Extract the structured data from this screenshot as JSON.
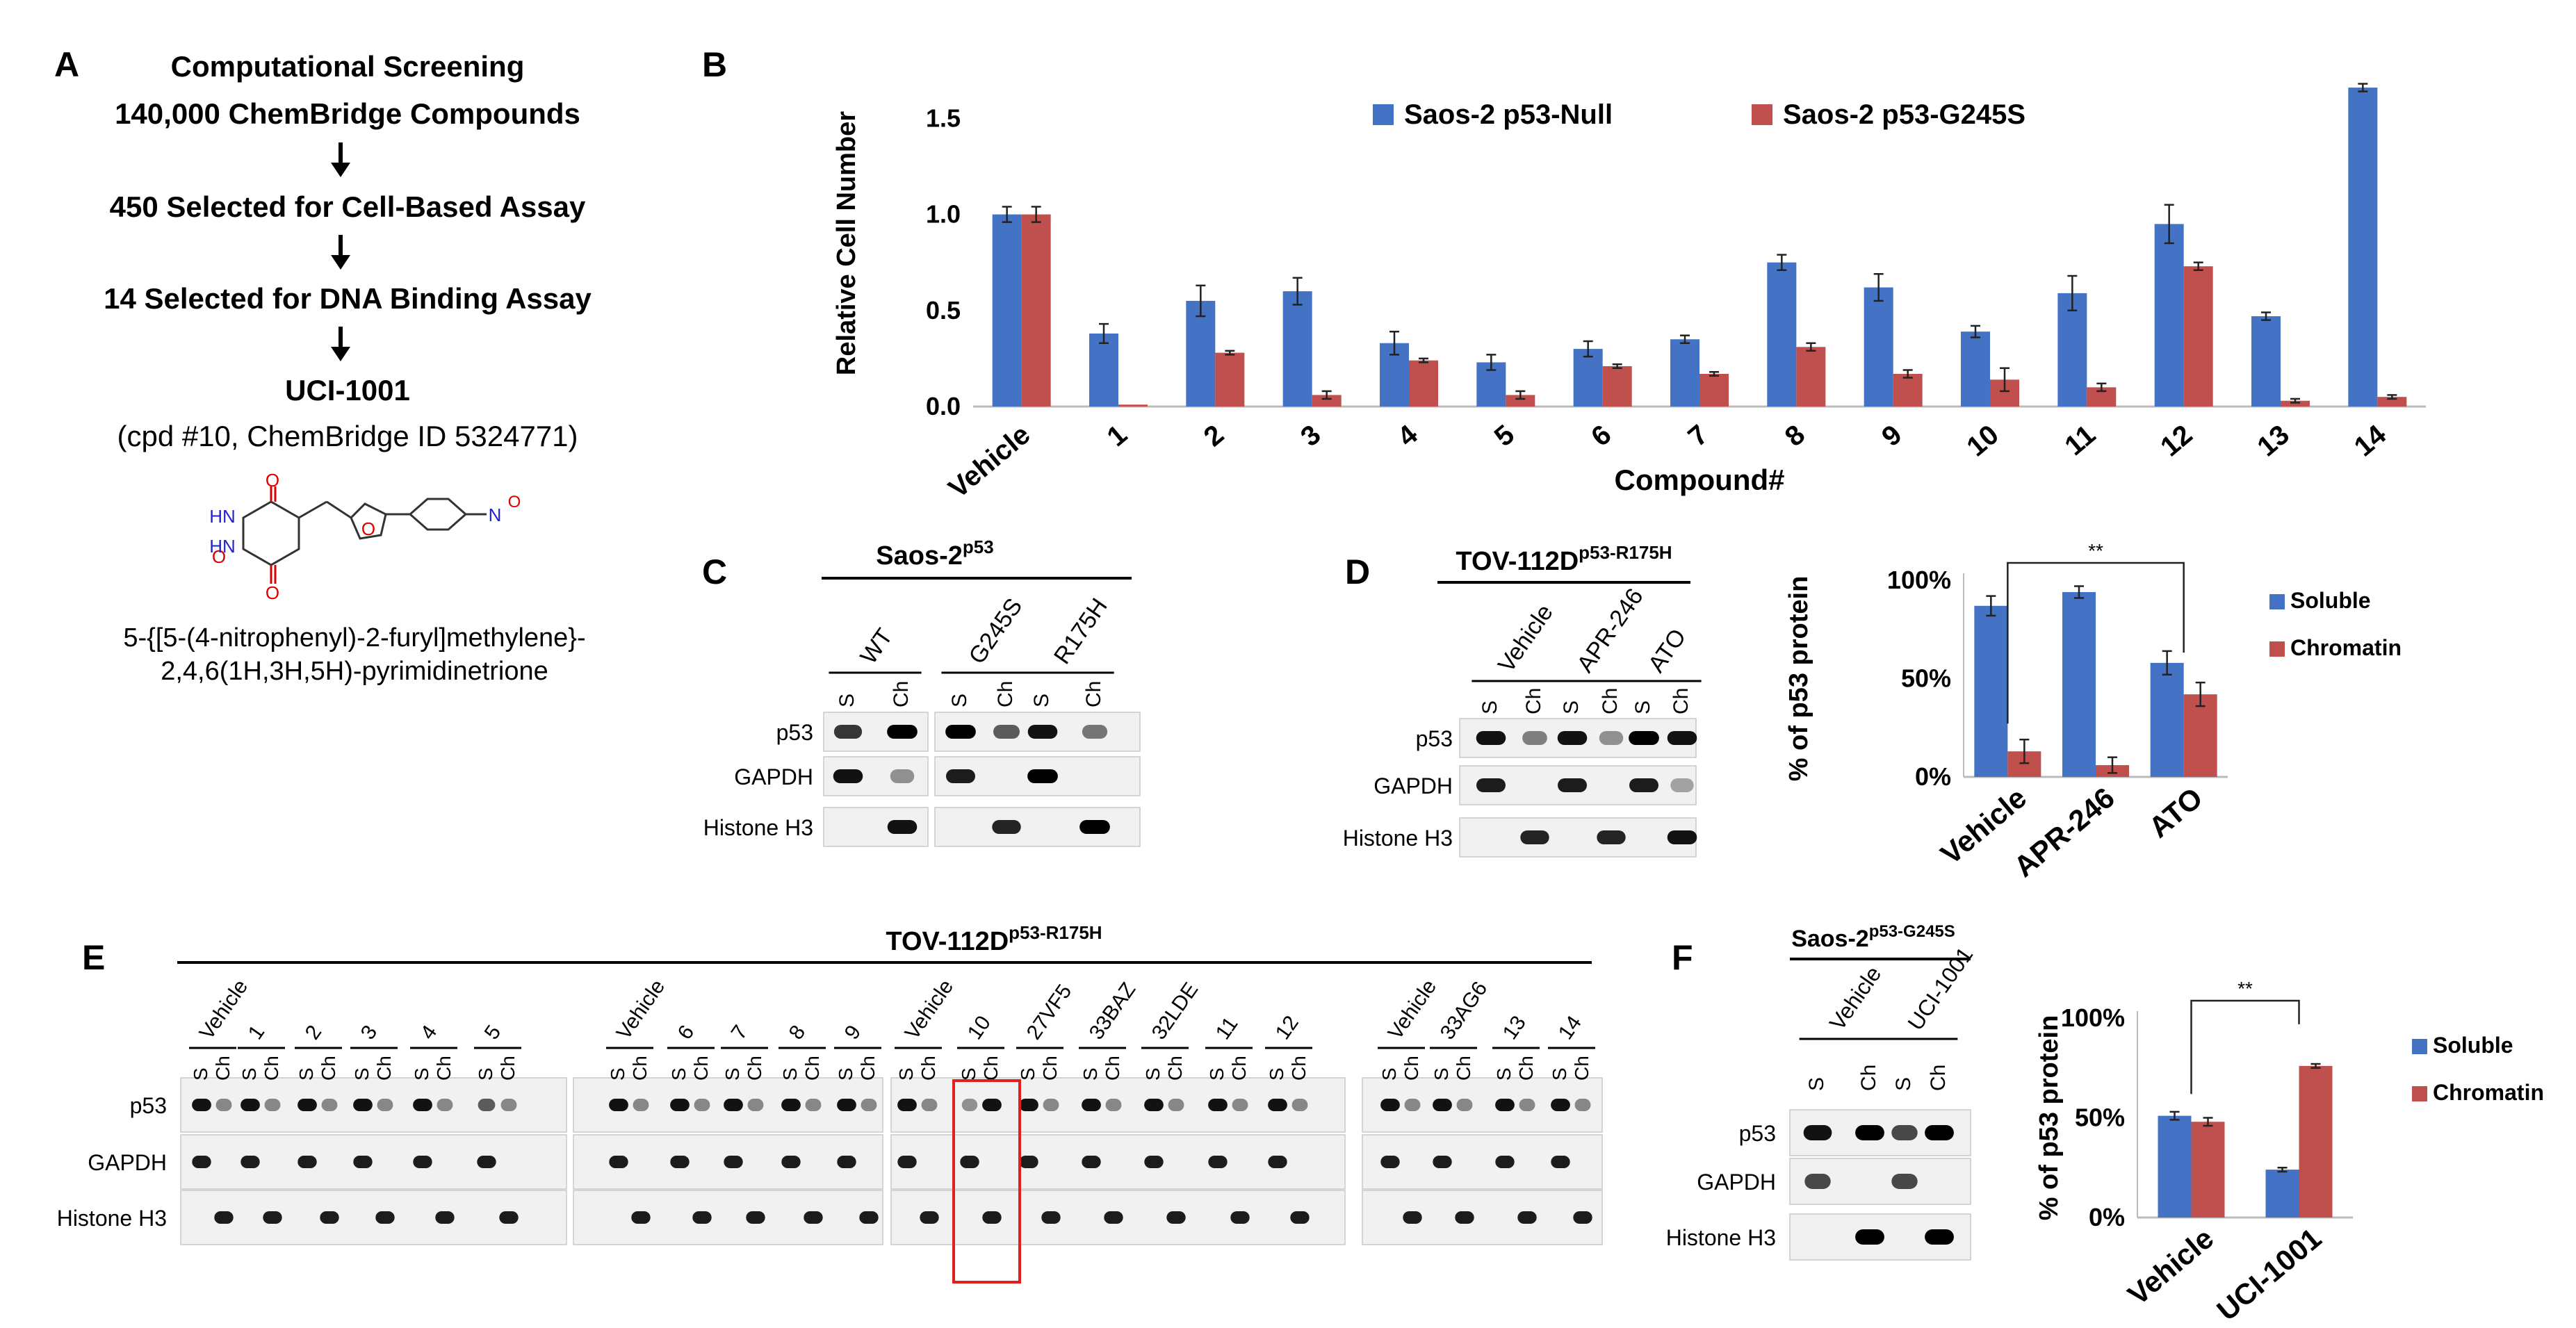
{
  "panelA": {
    "letter": "A",
    "lines": [
      "Computational Screening",
      "140,000 ChemBridge Compounds",
      "450 Selected for Cell-Based Assay",
      "14 Selected for DNA Binding Assay",
      "UCI-1001",
      "(cpd #10, ChemBridge ID 5324771)"
    ],
    "structure_atoms": [
      "O",
      "O",
      "O",
      "O",
      "HN",
      "HN",
      "N",
      "O"
    ],
    "name_lines": [
      "5-{[5-(4-nitrophenyl)-2-furyl]methylene}-",
      "2,4,6(1H,3H,5H)-pyrimidinetrione"
    ]
  },
  "panelB": {
    "letter": "B"
  },
  "panelC": {
    "letter": "C",
    "title_base": "Saos-2",
    "title_sup": "p53",
    "groups": [
      "WT",
      "G245S",
      "R175H"
    ],
    "lane_labels": [
      "S",
      "Ch",
      "S",
      "Ch",
      "S",
      "Ch"
    ],
    "rows": [
      "p53",
      "GAPDH",
      "Histone H3"
    ]
  },
  "panelD": {
    "letter": "D",
    "title_base": "TOV-112D",
    "title_sup": "p53-R175H",
    "groups": [
      "Vehicle",
      "APR-246",
      "ATO"
    ],
    "lane_labels": [
      "S",
      "Ch",
      "S",
      "Ch",
      "S",
      "Ch"
    ],
    "rows": [
      "p53",
      "GAPDH",
      "Histone H3"
    ]
  },
  "panelE": {
    "letter": "E",
    "title_base": "TOV-112D",
    "title_sup": "p53-R175H",
    "groups": [
      "Vehicle",
      "1",
      "2",
      "3",
      "4",
      "5",
      "Vehicle",
      "6",
      "7",
      "8",
      "9",
      "Vehicle",
      "10",
      "27VF5",
      "33BAZ",
      "32LDE",
      "11",
      "12",
      "Vehicle",
      "33AG6",
      "13",
      "14"
    ],
    "lane_s": "S",
    "lane_ch": "Ch",
    "rows": [
      "p53",
      "GAPDH",
      "Histone H3"
    ]
  },
  "panelF": {
    "letter": "F",
    "title_base": "Saos-2",
    "title_sup": "p53-G245S",
    "groups": [
      "Vehicle",
      "UCI-1001"
    ],
    "lane_labels": [
      "S",
      "Ch",
      "S",
      "Ch"
    ],
    "rows": [
      "p53",
      "GAPDH",
      "Histone H3"
    ]
  },
  "chart_data": [
    {
      "id": "B",
      "type": "bar",
      "xlabel": "Compound#",
      "ylabel": "Relative Cell Number",
      "ylim": [
        0,
        1.7
      ],
      "yticks": [
        "0.0",
        "0.5",
        "1.0",
        "1.5"
      ],
      "categories": [
        "Vehicle",
        "1",
        "2",
        "3",
        "4",
        "5",
        "6",
        "7",
        "8",
        "9",
        "10",
        "11",
        "12",
        "13",
        "14"
      ],
      "legend_position": "top",
      "series": [
        {
          "name": "Saos-2 p53-Null",
          "color": "#4472C4",
          "values": [
            1.0,
            0.38,
            0.55,
            0.6,
            0.33,
            0.23,
            0.3,
            0.35,
            0.75,
            0.62,
            0.39,
            0.59,
            0.95,
            0.47,
            1.66
          ],
          "errors": [
            0.04,
            0.05,
            0.08,
            0.07,
            0.06,
            0.04,
            0.04,
            0.02,
            0.04,
            0.07,
            0.03,
            0.09,
            0.1,
            0.02,
            0.02
          ]
        },
        {
          "name": "Saos-2 p53-G245S",
          "color": "#C0504D",
          "values": [
            1.0,
            0.01,
            0.28,
            0.06,
            0.24,
            0.06,
            0.21,
            0.17,
            0.31,
            0.17,
            0.14,
            0.1,
            0.73,
            0.03,
            0.05
          ],
          "errors": [
            0.04,
            0.0,
            0.01,
            0.02,
            0.01,
            0.02,
            0.01,
            0.01,
            0.02,
            0.02,
            0.06,
            0.02,
            0.02,
            0.01,
            0.01
          ]
        }
      ]
    },
    {
      "id": "D-quant",
      "type": "bar",
      "ylabel": "% of p53 protein",
      "ylim": [
        0,
        100
      ],
      "yticks": [
        "0%",
        "50%",
        "100%"
      ],
      "categories": [
        "Vehicle",
        "APR-246",
        "ATO"
      ],
      "legend_position": "right",
      "significance": {
        "label": "**",
        "from": "Vehicle",
        "to": "ATO"
      },
      "series": [
        {
          "name": "Soluble",
          "color": "#4472C4",
          "values": [
            87,
            94,
            58
          ],
          "errors": [
            5,
            3,
            6
          ]
        },
        {
          "name": "Chromatin",
          "color": "#C0504D",
          "values": [
            13,
            6,
            42
          ],
          "errors": [
            6,
            4,
            6
          ]
        }
      ]
    },
    {
      "id": "F-quant",
      "type": "bar",
      "ylabel": "% of p53 protein",
      "ylim": [
        0,
        100
      ],
      "yticks": [
        "0%",
        "50%",
        "100%"
      ],
      "categories": [
        "Vehicle",
        "UCI-1001"
      ],
      "legend_position": "right",
      "significance": {
        "label": "**",
        "from": "Vehicle",
        "to": "UCI-1001"
      },
      "series": [
        {
          "name": "Soluble",
          "color": "#4472C4",
          "values": [
            51,
            24
          ],
          "errors": [
            2,
            1
          ]
        },
        {
          "name": "Chromatin",
          "color": "#C0504D",
          "values": [
            48,
            76
          ],
          "errors": [
            2,
            1
          ]
        }
      ]
    }
  ]
}
